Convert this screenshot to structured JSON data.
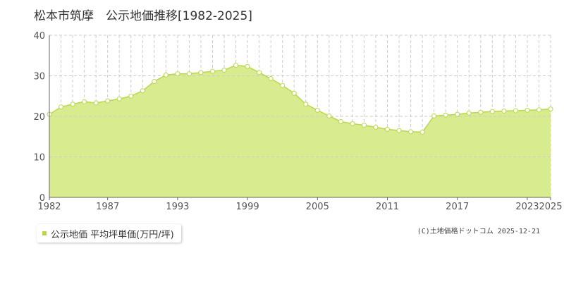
{
  "page_title": "松本市筑摩　公示地価推移[1982-2025]",
  "legend": {
    "label": "公示地価 平均坪単価(万円/坪)"
  },
  "credit": "(C)土地価格ドットコム 2025-12-21",
  "colors": {
    "area_fill": "#d9eb8f",
    "line": "#b8d84a",
    "point_fill": "#ffffff",
    "grid": "#cccccc",
    "axis": "#666666"
  },
  "chart_data": {
    "type": "area",
    "title": "",
    "xlabel": "",
    "ylabel": "",
    "xlim": [
      1982,
      2025
    ],
    "ylim": [
      0,
      40
    ],
    "grid": true,
    "x_ticks": [
      1982,
      1987,
      1993,
      1999,
      2005,
      2011,
      2017,
      2023,
      2025
    ],
    "y_ticks": [
      0,
      10,
      20,
      30,
      40
    ],
    "x": [
      1982,
      1983,
      1984,
      1985,
      1986,
      1987,
      1988,
      1989,
      1990,
      1991,
      1992,
      1993,
      1994,
      1995,
      1996,
      1997,
      1998,
      1999,
      2000,
      2001,
      2002,
      2003,
      2004,
      2005,
      2006,
      2007,
      2008,
      2009,
      2010,
      2011,
      2012,
      2013,
      2014,
      2015,
      2016,
      2017,
      2018,
      2019,
      2020,
      2021,
      2022,
      2023,
      2024,
      2025
    ],
    "series": [
      {
        "values": [
          20.5,
          22.3,
          23.0,
          23.6,
          23.3,
          23.8,
          24.3,
          25.0,
          26.3,
          28.6,
          30.2,
          30.5,
          30.5,
          30.8,
          31.1,
          31.4,
          32.6,
          32.3,
          30.8,
          29.3,
          27.6,
          25.7,
          23.0,
          21.5,
          20.1,
          18.7,
          18.2,
          17.8,
          17.3,
          16.8,
          16.5,
          16.2,
          16.1,
          20.1,
          20.3,
          20.5,
          20.8,
          21.0,
          21.2,
          21.3,
          21.4,
          21.5,
          21.6,
          21.8
        ]
      }
    ]
  }
}
